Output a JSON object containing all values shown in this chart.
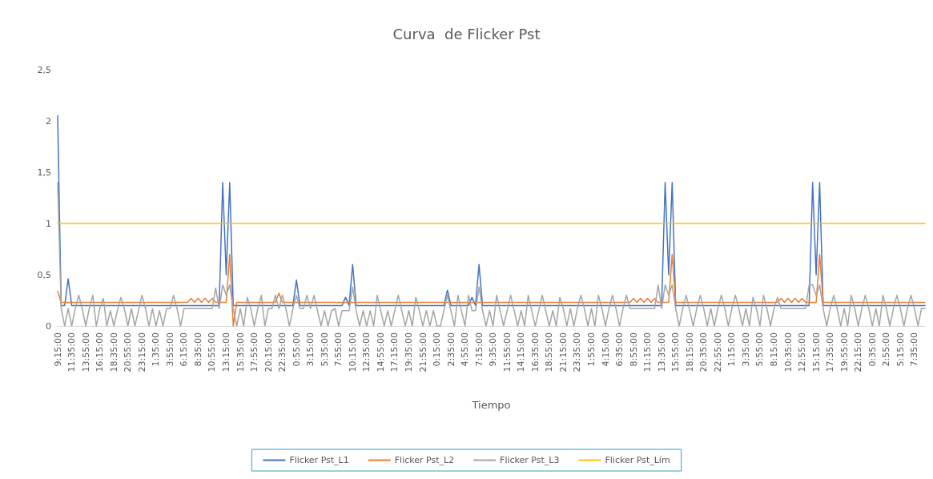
{
  "chart_data": {
    "type": "line",
    "title": "Curva  de Flicker Pst",
    "xlabel": "Tiempo",
    "ylim": [
      0,
      2.5
    ],
    "yticks": [
      0,
      {
        "value": 0.5,
        "label": "0,5"
      },
      1,
      {
        "value": 1.5,
        "label": "1,5"
      },
      2,
      {
        "value": 2.5,
        "label": "2,5"
      }
    ],
    "categories": [
      "9:15:00",
      null,
      null,
      null,
      "11:35:00",
      null,
      null,
      null,
      "13:55:00",
      null,
      null,
      null,
      "16:15:00",
      null,
      null,
      null,
      "18:35:00",
      null,
      null,
      null,
      "20:55:00",
      null,
      null,
      null,
      "23:15:00",
      null,
      null,
      null,
      "1:35:00",
      null,
      null,
      null,
      "3:55:00",
      null,
      null,
      null,
      "6:15:00",
      null,
      null,
      null,
      "8:35:00",
      null,
      null,
      null,
      "10:55:00",
      null,
      null,
      null,
      "13:15:00",
      null,
      null,
      null,
      "15:35:00",
      null,
      null,
      null,
      "17:55:00",
      null,
      null,
      null,
      "20:15:00",
      null,
      null,
      null,
      "22:35:00",
      null,
      null,
      null,
      "0:55:00",
      null,
      null,
      null,
      "3:15:00",
      null,
      null,
      null,
      "5:35:00",
      null,
      null,
      null,
      "7:55:00",
      null,
      null,
      null,
      "10:15:00",
      null,
      null,
      null,
      "12:35:00",
      null,
      null,
      null,
      "14:55:00",
      null,
      null,
      null,
      "17:15:00",
      null,
      null,
      null,
      "19:35:00",
      null,
      null,
      null,
      "21:55:00",
      null,
      null,
      null,
      "0:15:00",
      null,
      null,
      null,
      "2:35:00",
      null,
      null,
      null,
      "4:55:00",
      null,
      null,
      null,
      "7:15:00",
      null,
      null,
      null,
      "9:35:00",
      null,
      null,
      null,
      "11:55:00",
      null,
      null,
      null,
      "14:15:00",
      null,
      null,
      null,
      "16:35:00",
      null,
      null,
      null,
      "18:55:00",
      null,
      null,
      null,
      "21:15:00",
      null,
      null,
      null,
      "23:35:00",
      null,
      null,
      null,
      "1:55:00",
      null,
      null,
      null,
      "4:15:00",
      null,
      null,
      null,
      "6:35:00",
      null,
      null,
      null,
      "8:55:00",
      null,
      null,
      null,
      "11:15:00",
      null,
      null,
      null,
      "13:35:00",
      null,
      null,
      null,
      "15:55:00",
      null,
      null,
      null,
      "18:15:00",
      null,
      null,
      null,
      "20:35:00",
      null,
      null,
      null,
      "22:55:00",
      null,
      null,
      null,
      "1:15:00",
      null,
      null,
      null,
      "3:35:00",
      null,
      null,
      null,
      "5:55:00",
      null,
      null,
      null,
      "8:15:00",
      null,
      null,
      null,
      "10:35:00",
      null,
      null,
      null,
      "12:55:00",
      null,
      null,
      null,
      "15:15:00",
      null,
      null,
      null,
      "17:35:00",
      null,
      null,
      null,
      "19:55:00",
      null,
      null,
      null,
      "22:15:00",
      null,
      null,
      null,
      "0:35:00",
      null,
      null,
      null,
      "2:55:00",
      null,
      null,
      null,
      "5:15:00",
      null,
      null,
      null,
      "7:35:00",
      null,
      null,
      null
    ],
    "grid": false,
    "legend": "bottom",
    "marker": "none",
    "line_style": "solid",
    "series": [
      {
        "name": "Flicker Pst_L1",
        "color": "#4472c4",
        "values": [
          2.05,
          0.2,
          0.2,
          0.46,
          0.2,
          0.2,
          0.2,
          0.2,
          0.2,
          0.2,
          0.2,
          0.2,
          0.2,
          0.2,
          0.2,
          0.2,
          0.2,
          0.2,
          0.2,
          0.2,
          0.2,
          0.2,
          0.2,
          0.2,
          0.2,
          0.2,
          0.2,
          0.2,
          0.2,
          0.2,
          0.2,
          0.2,
          0.2,
          0.2,
          0.2,
          0.2,
          0.2,
          0.2,
          0.2,
          0.2,
          0.2,
          0.2,
          0.2,
          0.2,
          0.2,
          0.2,
          0.2,
          1.4,
          0.5,
          1.4,
          0.2,
          0.2,
          0.2,
          0.2,
          0.2,
          0.2,
          0.2,
          0.2,
          0.2,
          0.2,
          0.2,
          0.2,
          0.2,
          0.2,
          0.2,
          0.2,
          0.2,
          0.2,
          0.45,
          0.2,
          0.2,
          0.2,
          0.2,
          0.2,
          0.2,
          0.2,
          0.2,
          0.2,
          0.2,
          0.2,
          0.2,
          0.2,
          0.28,
          0.2,
          0.6,
          0.2,
          0.2,
          0.2,
          0.2,
          0.2,
          0.2,
          0.2,
          0.2,
          0.2,
          0.2,
          0.2,
          0.2,
          0.2,
          0.2,
          0.2,
          0.2,
          0.2,
          0.2,
          0.2,
          0.2,
          0.2,
          0.2,
          0.2,
          0.2,
          0.2,
          0.2,
          0.35,
          0.2,
          0.2,
          0.2,
          0.2,
          0.2,
          0.2,
          0.28,
          0.2,
          0.6,
          0.2,
          0.2,
          0.2,
          0.2,
          0.2,
          0.2,
          0.2,
          0.2,
          0.2,
          0.2,
          0.2,
          0.2,
          0.2,
          0.2,
          0.2,
          0.2,
          0.2,
          0.2,
          0.2,
          0.2,
          0.2,
          0.2,
          0.2,
          0.2,
          0.2,
          0.2,
          0.2,
          0.2,
          0.2,
          0.2,
          0.2,
          0.2,
          0.2,
          0.2,
          0.2,
          0.2,
          0.2,
          0.2,
          0.2,
          0.2,
          0.2,
          0.2,
          0.2,
          0.2,
          0.2,
          0.2,
          0.2,
          0.2,
          0.2,
          0.2,
          0.2,
          0.2,
          1.4,
          0.5,
          1.4,
          0.2,
          0.2,
          0.2,
          0.2,
          0.2,
          0.2,
          0.2,
          0.2,
          0.2,
          0.2,
          0.2,
          0.2,
          0.2,
          0.2,
          0.2,
          0.2,
          0.2,
          0.2,
          0.2,
          0.2,
          0.2,
          0.2,
          0.2,
          0.2,
          0.2,
          0.2,
          0.2,
          0.2,
          0.2,
          0.2,
          0.2,
          0.2,
          0.2,
          0.2,
          0.2,
          0.2,
          0.2,
          0.2,
          0.2,
          1.4,
          0.5,
          1.4,
          0.2,
          0.2,
          0.2,
          0.2,
          0.2,
          0.2,
          0.2,
          0.2,
          0.2,
          0.2,
          0.2,
          0.2,
          0.2,
          0.2,
          0.2,
          0.2,
          0.2,
          0.2,
          0.2,
          0.2,
          0.2,
          0.2,
          0.2,
          0.2,
          0.2,
          0.2,
          0.2,
          0.2,
          0.2,
          0.2
        ]
      },
      {
        "name": "Flicker Pst_L2",
        "color": "#ed7d31",
        "values": [
          0.34,
          0.23,
          0.23,
          0.23,
          0.23,
          0.23,
          0.23,
          0.23,
          0.23,
          0.23,
          0.23,
          0.23,
          0.23,
          0.23,
          0.23,
          0.23,
          0.23,
          0.23,
          0.23,
          0.23,
          0.23,
          0.23,
          0.23,
          0.23,
          0.23,
          0.23,
          0.23,
          0.23,
          0.23,
          0.23,
          0.23,
          0.23,
          0.23,
          0.23,
          0.23,
          0.23,
          0.23,
          0.23,
          0.27,
          0.23,
          0.27,
          0.23,
          0.27,
          0.23,
          0.27,
          0.23,
          0.23,
          0.23,
          0.23,
          0.7,
          0,
          0.23,
          0.23,
          0.23,
          0.23,
          0.23,
          0.23,
          0.23,
          0.23,
          0.23,
          0.23,
          0.23,
          0.23,
          0.32,
          0.23,
          0.23,
          0.23,
          0.23,
          0.23,
          0.23,
          0.23,
          0.23,
          0.23,
          0.23,
          0.23,
          0.23,
          0.23,
          0.23,
          0.23,
          0.23,
          0.23,
          0.23,
          0.23,
          0.23,
          0.23,
          0.23,
          0.23,
          0.23,
          0.23,
          0.23,
          0.23,
          0.23,
          0.23,
          0.23,
          0.23,
          0.23,
          0.23,
          0.23,
          0.23,
          0.23,
          0.23,
          0.23,
          0.23,
          0.23,
          0.23,
          0.23,
          0.23,
          0.23,
          0.23,
          0.23,
          0.23,
          0.23,
          0.23,
          0.23,
          0.23,
          0.23,
          0.23,
          0.23,
          0.23,
          0.23,
          0.23,
          0.23,
          0.23,
          0.23,
          0.23,
          0.23,
          0.23,
          0.23,
          0.23,
          0.23,
          0.23,
          0.23,
          0.23,
          0.23,
          0.23,
          0.23,
          0.23,
          0.23,
          0.23,
          0.23,
          0.23,
          0.23,
          0.23,
          0.23,
          0.23,
          0.23,
          0.23,
          0.23,
          0.23,
          0.23,
          0.23,
          0.23,
          0.23,
          0.23,
          0.23,
          0.23,
          0.23,
          0.23,
          0.23,
          0.23,
          0.23,
          0.23,
          0.23,
          0.23,
          0.27,
          0.23,
          0.27,
          0.23,
          0.27,
          0.23,
          0.27,
          0.23,
          0.23,
          0.23,
          0.23,
          0.7,
          0.23,
          0.23,
          0.23,
          0.23,
          0.23,
          0.23,
          0.23,
          0.23,
          0.23,
          0.23,
          0.23,
          0.23,
          0.23,
          0.23,
          0.23,
          0.23,
          0.23,
          0.23,
          0.23,
          0.23,
          0.23,
          0.23,
          0.23,
          0.23,
          0.23,
          0.23,
          0.23,
          0.23,
          0.23,
          0.23,
          0.27,
          0.23,
          0.27,
          0.23,
          0.27,
          0.23,
          0.27,
          0.23,
          0.23,
          0.23,
          0.23,
          0.7,
          0.23,
          0.23,
          0.23,
          0.23,
          0.23,
          0.23,
          0.23,
          0.23,
          0.23,
          0.23,
          0.23,
          0.23,
          0.23,
          0.23,
          0.23,
          0.23,
          0.23,
          0.23,
          0.23,
          0.23,
          0.23,
          0.23,
          0.23,
          0.23,
          0.23,
          0.23,
          0.23,
          0.23,
          0.23,
          0.23
        ]
      },
      {
        "name": "Flicker Pst_L3",
        "color": "#a5a5a5",
        "values": [
          1.4,
          0.17,
          0,
          0.17,
          0,
          0.17,
          0.3,
          0.17,
          0,
          0.17,
          0.3,
          0,
          0.17,
          0.27,
          0,
          0.15,
          0,
          0.15,
          0.28,
          0.17,
          0,
          0.17,
          0,
          0.15,
          0.3,
          0.17,
          0,
          0.17,
          0,
          0.15,
          0,
          0.17,
          0.17,
          0.3,
          0.17,
          0,
          0.17,
          0.17,
          0.17,
          0.17,
          0.17,
          0.17,
          0.17,
          0.17,
          0.17,
          0.37,
          0.17,
          0.4,
          0.3,
          0.4,
          0.17,
          0,
          0.17,
          0,
          0.28,
          0.17,
          0,
          0.17,
          0.3,
          0,
          0.17,
          0.17,
          0.3,
          0.17,
          0.3,
          0.17,
          0,
          0.17,
          0.3,
          0.17,
          0.17,
          0.3,
          0.17,
          0.3,
          0.15,
          0,
          0.15,
          0,
          0.15,
          0.17,
          0,
          0.15,
          0.15,
          0.15,
          0.38,
          0.15,
          0,
          0.15,
          0,
          0.15,
          0,
          0.3,
          0.15,
          0,
          0.15,
          0,
          0.15,
          0.3,
          0.15,
          0,
          0.15,
          0,
          0.28,
          0.15,
          0,
          0.15,
          0,
          0.15,
          0,
          0,
          0.15,
          0.3,
          0.15,
          0,
          0.3,
          0.15,
          0,
          0.3,
          0.15,
          0.15,
          0.38,
          0.15,
          0,
          0.15,
          0,
          0.3,
          0.15,
          0,
          0.15,
          0.3,
          0.15,
          0,
          0.15,
          0,
          0.3,
          0.15,
          0,
          0.15,
          0.3,
          0.15,
          0,
          0.15,
          0,
          0.28,
          0.17,
          0,
          0.17,
          0,
          0.17,
          0.3,
          0.17,
          0,
          0.17,
          0,
          0.3,
          0.17,
          0,
          0.17,
          0.3,
          0.17,
          0,
          0.17,
          0.3,
          0.17,
          0.17,
          0.17,
          0.17,
          0.17,
          0.17,
          0.17,
          0.17,
          0.4,
          0.17,
          0.4,
          0.3,
          0.4,
          0.17,
          0,
          0.17,
          0.3,
          0.15,
          0,
          0.17,
          0.3,
          0.17,
          0,
          0.17,
          0,
          0.17,
          0.3,
          0.17,
          0,
          0.17,
          0.3,
          0.17,
          0,
          0.17,
          0,
          0.28,
          0.17,
          0,
          0.3,
          0.17,
          0,
          0.17,
          0.28,
          0.17,
          0.17,
          0.17,
          0.17,
          0.17,
          0.17,
          0.17,
          0.17,
          0.4,
          0.4,
          0.3,
          0.4,
          0.17,
          0,
          0.17,
          0.3,
          0.17,
          0,
          0.17,
          0,
          0.3,
          0.17,
          0,
          0.17,
          0.3,
          0.17,
          0,
          0.17,
          0,
          0.3,
          0.17,
          0,
          0.17,
          0.3,
          0.17,
          0,
          0.17,
          0.3,
          0.17,
          0,
          0.17,
          0.17
        ]
      },
      {
        "name": "Flicker Pst_Lím",
        "color": "#ffc000",
        "values": [
          1,
          1,
          1,
          1,
          1,
          1,
          1,
          1,
          1,
          1,
          1,
          1,
          1,
          1,
          1,
          1,
          1,
          1,
          1,
          1,
          1,
          1,
          1,
          1,
          1,
          1,
          1,
          1,
          1,
          1,
          1,
          1,
          1,
          1,
          1,
          1,
          1,
          1,
          1,
          1,
          1,
          1,
          1,
          1,
          1,
          1,
          1,
          1,
          1,
          1,
          1,
          1,
          1,
          1,
          1,
          1,
          1,
          1,
          1,
          1,
          1,
          1,
          1,
          1,
          1,
          1,
          1,
          1,
          1,
          1,
          1,
          1,
          1,
          1,
          1,
          1,
          1,
          1,
          1,
          1,
          1,
          1,
          1,
          1,
          1,
          1,
          1,
          1,
          1,
          1,
          1,
          1,
          1,
          1,
          1,
          1,
          1,
          1,
          1,
          1,
          1,
          1,
          1,
          1,
          1,
          1,
          1,
          1,
          1,
          1,
          1,
          1,
          1,
          1,
          1,
          1,
          1,
          1,
          1,
          1,
          1,
          1,
          1,
          1,
          1,
          1,
          1,
          1,
          1,
          1,
          1,
          1,
          1,
          1,
          1,
          1,
          1,
          1,
          1,
          1,
          1,
          1,
          1,
          1,
          1,
          1,
          1,
          1,
          1,
          1,
          1,
          1,
          1,
          1,
          1,
          1,
          1,
          1,
          1,
          1,
          1,
          1,
          1,
          1,
          1,
          1,
          1,
          1,
          1,
          1,
          1,
          1,
          1,
          1,
          1,
          1,
          1,
          1,
          1,
          1,
          1,
          1,
          1,
          1,
          1,
          1,
          1,
          1,
          1,
          1,
          1,
          1,
          1,
          1,
          1,
          1,
          1,
          1,
          1,
          1,
          1,
          1,
          1,
          1,
          1,
          1,
          1,
          1,
          1,
          1,
          1,
          1,
          1,
          1,
          1,
          1,
          1,
          1,
          1,
          1,
          1,
          1,
          1,
          1,
          1,
          1,
          1,
          1,
          1,
          1,
          1,
          1,
          1,
          1,
          1,
          1,
          1,
          1,
          1,
          1,
          1,
          1,
          1,
          1,
          1,
          1,
          1,
          1
        ]
      }
    ]
  }
}
